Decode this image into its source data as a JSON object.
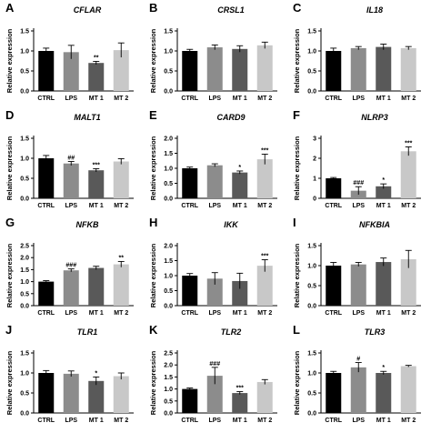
{
  "colors": {
    "CTRL": "#000000",
    "LPS": "#8c8c8c",
    "MT 1": "#595959",
    "MT 2": "#c8c8c8",
    "axis": "#000000"
  },
  "chart_data": [
    {
      "panel": "A",
      "type": "bar",
      "title": "CFLAR",
      "ylabel": "Relative expression",
      "categories": [
        "CTRL",
        "LPS",
        "MT 1",
        "MT 2"
      ],
      "values": [
        1.0,
        0.97,
        0.7,
        1.02
      ],
      "errors": [
        0.07,
        0.17,
        0.04,
        0.18
      ],
      "annotations": [
        "",
        "",
        "**",
        ""
      ],
      "ylim": [
        0,
        1.5
      ],
      "yticks": [
        "0.0",
        "0.5",
        "1.0",
        "1.5"
      ]
    },
    {
      "panel": "B",
      "type": "bar",
      "title": "CRSL1",
      "ylabel": "Relative expression",
      "categories": [
        "CTRL",
        "LPS",
        "MT 1",
        "MT 2"
      ],
      "values": [
        1.0,
        1.09,
        1.05,
        1.14
      ],
      "errors": [
        0.04,
        0.06,
        0.08,
        0.08
      ],
      "annotations": [
        "",
        "",
        "",
        ""
      ],
      "ylim": [
        0,
        1.5
      ],
      "yticks": [
        "0.0",
        "0.5",
        "1.0",
        "1.5"
      ]
    },
    {
      "panel": "C",
      "type": "bar",
      "title": "IL18",
      "ylabel": "Relative expression",
      "categories": [
        "CTRL",
        "LPS",
        "MT 1",
        "MT 2"
      ],
      "values": [
        1.0,
        1.07,
        1.1,
        1.07
      ],
      "errors": [
        0.07,
        0.04,
        0.07,
        0.04
      ],
      "annotations": [
        "",
        "",
        "",
        ""
      ],
      "ylim": [
        0,
        1.5
      ],
      "yticks": [
        "0.0",
        "0.5",
        "1.0",
        "1.5"
      ]
    },
    {
      "panel": "D",
      "type": "bar",
      "title": "MALT1",
      "ylabel": "Relative expression",
      "categories": [
        "CTRL",
        "LPS",
        "MT 1",
        "MT 2"
      ],
      "values": [
        1.0,
        0.87,
        0.7,
        0.92
      ],
      "errors": [
        0.07,
        0.05,
        0.04,
        0.07
      ],
      "annotations": [
        "",
        "##",
        "***",
        ""
      ],
      "ylim": [
        0,
        1.5
      ],
      "yticks": [
        "0.0",
        "0.5",
        "1.0",
        "1.5"
      ]
    },
    {
      "panel": "E",
      "type": "bar",
      "title": "CARD9",
      "ylabel": "Relative expression",
      "categories": [
        "CTRL",
        "LPS",
        "MT 1",
        "MT 2"
      ],
      "values": [
        1.0,
        1.1,
        0.86,
        1.3
      ],
      "errors": [
        0.04,
        0.05,
        0.05,
        0.17
      ],
      "annotations": [
        "",
        "",
        "*",
        "***"
      ],
      "ylim": [
        0,
        2.0
      ],
      "yticks": [
        "0.0",
        "0.5",
        "1.0",
        "1.5",
        "2.0"
      ]
    },
    {
      "panel": "F",
      "type": "bar",
      "title": "NLRP3",
      "ylabel": "Relative expression",
      "categories": [
        "CTRL",
        "LPS",
        "MT 1",
        "MT 2"
      ],
      "values": [
        1.0,
        0.38,
        0.6,
        2.35
      ],
      "errors": [
        0.04,
        0.2,
        0.12,
        0.22
      ],
      "annotations": [
        "",
        "###",
        "*",
        "***"
      ],
      "ylim": [
        0,
        3.0
      ],
      "yticks": [
        "0",
        "1",
        "2",
        "3"
      ]
    },
    {
      "panel": "G",
      "type": "bar",
      "title": "NFKB",
      "ylabel": "Relative expression",
      "categories": [
        "CTRL",
        "LPS",
        "MT 1",
        "MT 2"
      ],
      "values": [
        1.0,
        1.47,
        1.57,
        1.72
      ],
      "errors": [
        0.04,
        0.06,
        0.07,
        0.12
      ],
      "annotations": [
        "",
        "###",
        "",
        "**"
      ],
      "ylim": [
        0,
        2.5
      ],
      "yticks": [
        "0.0",
        "0.5",
        "1.0",
        "1.5",
        "2.0",
        "2.5"
      ]
    },
    {
      "panel": "H",
      "type": "bar",
      "title": "IKK",
      "ylabel": "Relative expression",
      "categories": [
        "CTRL",
        "LPS",
        "MT 1",
        "MT 2"
      ],
      "values": [
        1.0,
        0.9,
        0.82,
        1.33
      ],
      "errors": [
        0.07,
        0.2,
        0.26,
        0.2
      ],
      "annotations": [
        "",
        "",
        "",
        "***"
      ],
      "ylim": [
        0,
        2.0
      ],
      "yticks": [
        "0.0",
        "0.5",
        "1.0",
        "1.5",
        "2.0"
      ]
    },
    {
      "panel": "I",
      "type": "bar",
      "title": "NFKBIA",
      "ylabel": "Relative expression",
      "categories": [
        "CTRL",
        "LPS",
        "MT 1",
        "MT 2"
      ],
      "values": [
        1.0,
        1.03,
        1.09,
        1.16
      ],
      "errors": [
        0.08,
        0.05,
        0.1,
        0.22
      ],
      "annotations": [
        "",
        "",
        "",
        ""
      ],
      "ylim": [
        0,
        1.5
      ],
      "yticks": [
        "0.0",
        "0.5",
        "1.0",
        "1.5"
      ]
    },
    {
      "panel": "J",
      "type": "bar",
      "title": "TLR1",
      "ylabel": "Relative expression",
      "categories": [
        "CTRL",
        "LPS",
        "MT 1",
        "MT 2"
      ],
      "values": [
        1.0,
        0.98,
        0.8,
        0.92
      ],
      "errors": [
        0.06,
        0.07,
        0.1,
        0.08
      ],
      "annotations": [
        "",
        "",
        "*",
        ""
      ],
      "ylim": [
        0,
        1.5
      ],
      "yticks": [
        "0.0",
        "0.5",
        "1.0",
        "1.5"
      ]
    },
    {
      "panel": "K",
      "type": "bar",
      "title": "TLR2",
      "ylabel": "Relative expression",
      "categories": [
        "CTRL",
        "LPS",
        "MT 1",
        "MT 2"
      ],
      "values": [
        1.0,
        1.55,
        0.83,
        1.29
      ],
      "errors": [
        0.04,
        0.35,
        0.06,
        0.1
      ],
      "annotations": [
        "",
        "###",
        "***",
        ""
      ],
      "ylim": [
        0,
        2.5
      ],
      "yticks": [
        "0.0",
        "0.5",
        "1.0",
        "1.5",
        "2.0",
        "2.5"
      ]
    },
    {
      "panel": "L",
      "type": "bar",
      "title": "TLR3",
      "ylabel": "Relative expression",
      "categories": [
        "CTRL",
        "LPS",
        "MT 1",
        "MT 2"
      ],
      "values": [
        1.0,
        1.14,
        1.0,
        1.17
      ],
      "errors": [
        0.04,
        0.12,
        0.04,
        0.02
      ],
      "annotations": [
        "",
        "#",
        "*",
        ""
      ],
      "ylim": [
        0,
        1.5
      ],
      "yticks": [
        "0.0",
        "0.5",
        "1.0",
        "1.5"
      ]
    }
  ]
}
